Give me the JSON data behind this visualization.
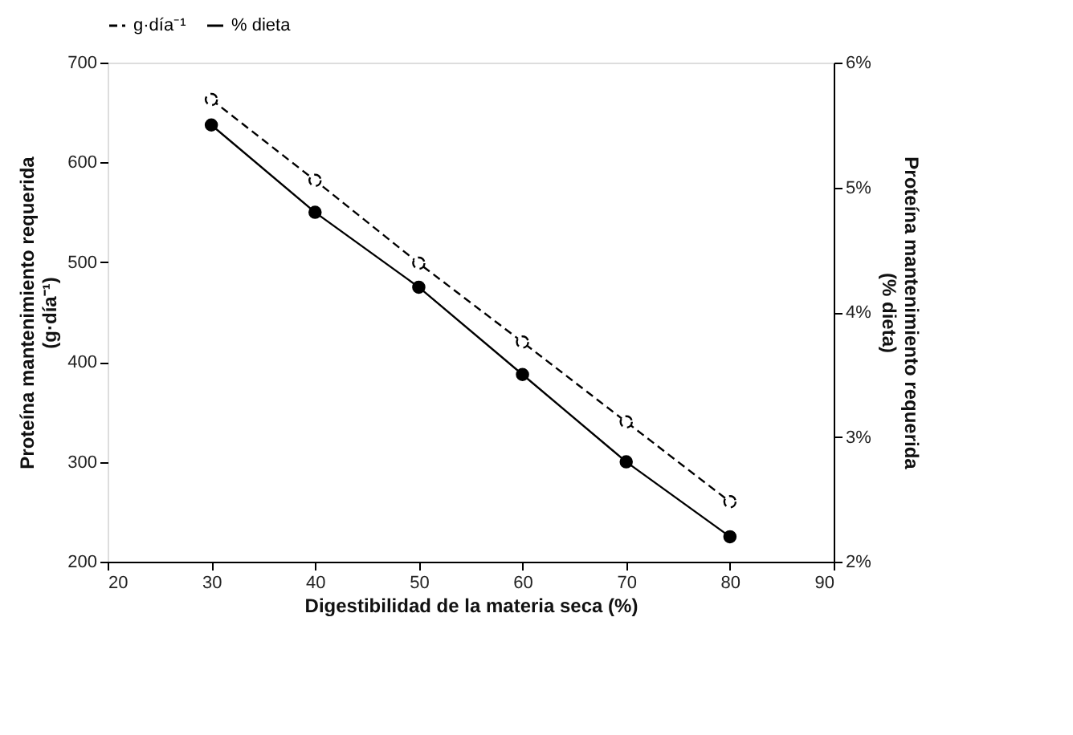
{
  "chart_data": {
    "type": "line",
    "xlabel": "Digestibilidad de la materia seca (%)",
    "ylabel": "Proteína mantenimiento requerida\n(g·día⁻¹)",
    "y2label": "Proteína mantenimiento requerida\n(% dieta)",
    "x": [
      30,
      40,
      50,
      60,
      70,
      80
    ],
    "series": [
      {
        "name": "g·día⁻¹",
        "color": "#000000",
        "axis": "y",
        "line_style": "dashed",
        "values": [
          663,
          582,
          499,
          420,
          340,
          260
        ]
      },
      {
        "name": "% dieta",
        "color": "#000000",
        "axis": "y2",
        "line_style": "solid",
        "values": [
          5.5,
          4.8,
          4.2,
          3.5,
          2.8,
          2.2
        ]
      }
    ],
    "xlim": [
      20,
      90
    ],
    "xticks": [
      20,
      30,
      40,
      50,
      60,
      70,
      80,
      90
    ],
    "ylim": [
      200,
      700
    ],
    "yticks": [
      200,
      300,
      400,
      500,
      600,
      700
    ],
    "y2lim": [
      2,
      6
    ],
    "y2ticks": [
      {
        "value": 2,
        "label": "2%"
      },
      {
        "value": 3,
        "label": "3%"
      },
      {
        "value": 4,
        "label": "4%"
      },
      {
        "value": 5,
        "label": "5%"
      },
      {
        "value": 6,
        "label": "6%"
      }
    ],
    "marker": "circle",
    "grid": false,
    "legend": "top"
  }
}
